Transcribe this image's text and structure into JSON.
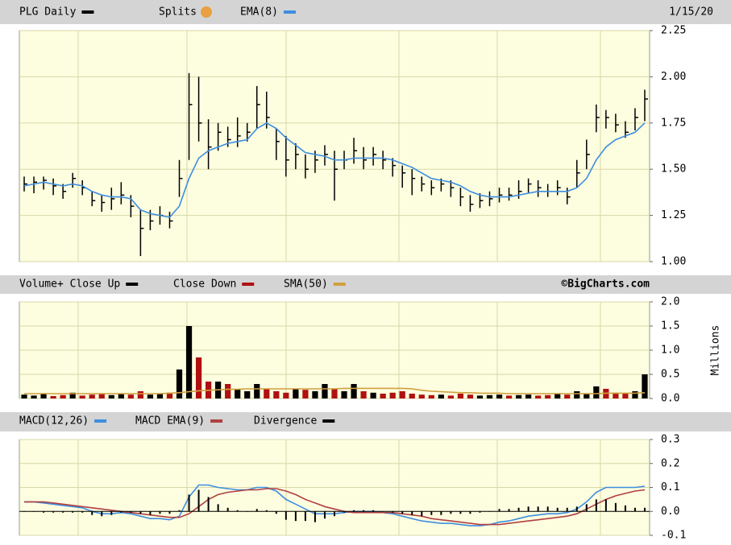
{
  "chart_data": [
    {
      "type": "ohlc",
      "date": "1/15/20",
      "splits": "Splits",
      "ylim": [
        1.0,
        2.25
      ],
      "yticks": [
        {
          "value": 1.0,
          "label": "1.00"
        },
        {
          "value": 1.25,
          "label": "1.25"
        },
        {
          "value": 1.5,
          "label": "1.50"
        },
        {
          "value": 1.75,
          "label": "1.75"
        },
        {
          "value": 2.0,
          "label": "2.00"
        },
        {
          "value": 2.25,
          "label": "2.25"
        }
      ],
      "grid": true,
      "series": [
        {
          "name": "PLG Daily",
          "color": "#000000",
          "high": [
            1.46,
            1.46,
            1.46,
            1.45,
            1.42,
            1.48,
            1.44,
            1.38,
            1.36,
            1.4,
            1.43,
            1.36,
            1.28,
            1.28,
            1.3,
            1.27,
            1.55,
            2.02,
            2.0,
            1.77,
            1.75,
            1.73,
            1.78,
            1.75,
            1.95,
            1.92,
            1.72,
            1.68,
            1.64,
            1.58,
            1.6,
            1.63,
            1.6,
            1.6,
            1.67,
            1.62,
            1.62,
            1.6,
            1.56,
            1.52,
            1.5,
            1.46,
            1.44,
            1.45,
            1.44,
            1.4,
            1.36,
            1.37,
            1.38,
            1.4,
            1.4,
            1.44,
            1.45,
            1.44,
            1.42,
            1.44,
            1.4,
            1.55,
            1.66,
            1.85,
            1.82,
            1.8,
            1.76,
            1.83,
            1.93
          ],
          "low": [
            1.38,
            1.37,
            1.39,
            1.36,
            1.34,
            1.4,
            1.36,
            1.3,
            1.27,
            1.28,
            1.31,
            1.24,
            1.03,
            1.17,
            1.2,
            1.18,
            1.35,
            1.55,
            1.65,
            1.5,
            1.6,
            1.62,
            1.62,
            1.65,
            1.72,
            1.72,
            1.55,
            1.46,
            1.5,
            1.45,
            1.48,
            1.52,
            1.33,
            1.5,
            1.53,
            1.5,
            1.52,
            1.5,
            1.46,
            1.4,
            1.36,
            1.38,
            1.36,
            1.38,
            1.35,
            1.3,
            1.27,
            1.29,
            1.3,
            1.32,
            1.33,
            1.34,
            1.37,
            1.35,
            1.35,
            1.36,
            1.31,
            1.4,
            1.5,
            1.7,
            1.72,
            1.7,
            1.67,
            1.71,
            1.76
          ],
          "close": [
            1.42,
            1.43,
            1.44,
            1.41,
            1.38,
            1.45,
            1.4,
            1.33,
            1.32,
            1.34,
            1.36,
            1.3,
            1.18,
            1.22,
            1.25,
            1.22,
            1.45,
            1.85,
            1.75,
            1.62,
            1.7,
            1.66,
            1.68,
            1.7,
            1.85,
            1.78,
            1.65,
            1.55,
            1.58,
            1.5,
            1.55,
            1.58,
            1.5,
            1.55,
            1.6,
            1.55,
            1.58,
            1.55,
            1.52,
            1.48,
            1.45,
            1.42,
            1.4,
            1.42,
            1.4,
            1.35,
            1.31,
            1.33,
            1.34,
            1.36,
            1.36,
            1.38,
            1.42,
            1.4,
            1.38,
            1.4,
            1.35,
            1.48,
            1.58,
            1.78,
            1.78,
            1.74,
            1.7,
            1.78,
            1.88
          ]
        },
        {
          "name": "EMA(8)",
          "color": "#3d8ee0",
          "type": "line",
          "values": [
            1.41,
            1.42,
            1.43,
            1.42,
            1.41,
            1.42,
            1.41,
            1.38,
            1.36,
            1.35,
            1.35,
            1.34,
            1.28,
            1.26,
            1.25,
            1.24,
            1.3,
            1.45,
            1.56,
            1.6,
            1.62,
            1.64,
            1.65,
            1.66,
            1.72,
            1.75,
            1.72,
            1.67,
            1.63,
            1.59,
            1.58,
            1.57,
            1.55,
            1.55,
            1.56,
            1.56,
            1.56,
            1.56,
            1.55,
            1.53,
            1.51,
            1.48,
            1.45,
            1.44,
            1.43,
            1.41,
            1.38,
            1.36,
            1.35,
            1.35,
            1.35,
            1.36,
            1.37,
            1.38,
            1.38,
            1.38,
            1.38,
            1.4,
            1.45,
            1.55,
            1.62,
            1.66,
            1.68,
            1.7,
            1.75
          ]
        }
      ]
    },
    {
      "type": "bar",
      "credit": "©BigCharts.com",
      "y_label": "Millions",
      "ylim": [
        0,
        2
      ],
      "yticks": [
        {
          "value": 0,
          "label": "0.0"
        },
        0.5,
        {
          "value": 1,
          "label": "1.0"
        },
        1.5,
        {
          "value": 2,
          "label": "2.0"
        }
      ],
      "grid": true,
      "series": [
        {
          "name": "Volume+ Close Up",
          "color": "#000000",
          "values": [
            0.08,
            0.06,
            0.1,
            null,
            null,
            0.12,
            null,
            null,
            null,
            0.07,
            0.09,
            null,
            null,
            0.08,
            0.1,
            null,
            0.6,
            1.5,
            null,
            null,
            0.35,
            null,
            0.2,
            0.15,
            0.3,
            null,
            null,
            null,
            0.2,
            null,
            0.15,
            0.3,
            null,
            0.15,
            0.3,
            null,
            0.12,
            null,
            null,
            null,
            null,
            null,
            null,
            0.08,
            null,
            null,
            null,
            0.06,
            0.07,
            0.08,
            null,
            0.07,
            0.08,
            null,
            null,
            0.1,
            null,
            0.15,
            0.1,
            0.25,
            null,
            null,
            null,
            0.15,
            0.5
          ]
        },
        {
          "name": "Close Down",
          "color": "#b01010",
          "values": [
            null,
            null,
            null,
            0.05,
            0.07,
            null,
            0.06,
            0.08,
            0.1,
            null,
            null,
            0.08,
            0.15,
            null,
            null,
            0.12,
            null,
            null,
            0.85,
            0.35,
            null,
            0.3,
            null,
            null,
            null,
            0.2,
            0.15,
            0.12,
            null,
            0.18,
            null,
            null,
            0.2,
            null,
            null,
            0.15,
            null,
            0.1,
            0.12,
            0.15,
            0.1,
            0.08,
            0.07,
            null,
            0.06,
            0.1,
            0.08,
            null,
            null,
            null,
            0.06,
            null,
            null,
            0.06,
            0.07,
            null,
            0.08,
            null,
            null,
            null,
            0.2,
            0.12,
            0.1,
            null,
            null
          ]
        },
        {
          "name": "SMA(50)",
          "color": "#d0a040",
          "type": "line",
          "values": [
            0.1,
            0.1,
            0.1,
            0.1,
            0.1,
            0.1,
            0.1,
            0.1,
            0.1,
            0.1,
            0.1,
            0.1,
            0.1,
            0.1,
            0.1,
            0.11,
            0.12,
            0.14,
            0.16,
            0.17,
            0.18,
            0.19,
            0.19,
            0.2,
            0.2,
            0.2,
            0.2,
            0.2,
            0.2,
            0.2,
            0.2,
            0.2,
            0.2,
            0.21,
            0.21,
            0.21,
            0.21,
            0.21,
            0.21,
            0.21,
            0.2,
            0.17,
            0.15,
            0.14,
            0.13,
            0.12,
            0.12,
            0.11,
            0.11,
            0.11,
            0.1,
            0.1,
            0.1,
            0.1,
            0.1,
            0.1,
            0.1,
            0.1,
            0.1,
            0.1,
            0.11,
            0.11,
            0.11,
            0.11,
            0.12
          ]
        }
      ]
    },
    {
      "type": "line",
      "ylim": [
        -0.1,
        0.3
      ],
      "yticks": [
        -0.1,
        {
          "value": 0,
          "label": "0.0"
        },
        0.1,
        0.2,
        0.3
      ],
      "grid": true,
      "series": [
        {
          "name": "MACD(12,26)",
          "color": "#3d8ee0",
          "values": [
            0.04,
            0.04,
            0.035,
            0.03,
            0.025,
            0.02,
            0.015,
            0,
            -0.01,
            -0.01,
            -0.005,
            -0.01,
            -0.02,
            -0.03,
            -0.03,
            -0.035,
            -0.02,
            0.06,
            0.11,
            0.11,
            0.1,
            0.095,
            0.09,
            0.09,
            0.1,
            0.1,
            0.085,
            0.05,
            0.03,
            0.01,
            -0.01,
            -0.01,
            -0.01,
            -0.005,
            0,
            0,
            0,
            -0.005,
            -0.01,
            -0.02,
            -0.03,
            -0.04,
            -0.045,
            -0.05,
            -0.05,
            -0.055,
            -0.06,
            -0.06,
            -0.055,
            -0.045,
            -0.04,
            -0.03,
            -0.02,
            -0.015,
            -0.01,
            -0.01,
            -0.005,
            0.01,
            0.04,
            0.08,
            0.1,
            0.1,
            0.1,
            0.1,
            0.105
          ]
        },
        {
          "name": "MACD EMA(9)",
          "color": "#b04040",
          "values": [
            0.04,
            0.04,
            0.04,
            0.035,
            0.03,
            0.025,
            0.02,
            0.015,
            0.01,
            0.005,
            0,
            -0.005,
            -0.01,
            -0.015,
            -0.02,
            -0.025,
            -0.025,
            -0.01,
            0.02,
            0.05,
            0.07,
            0.08,
            0.085,
            0.09,
            0.09,
            0.095,
            0.095,
            0.085,
            0.07,
            0.05,
            0.035,
            0.02,
            0.01,
            0,
            -0.005,
            -0.005,
            -0.005,
            -0.005,
            -0.005,
            -0.01,
            -0.015,
            -0.02,
            -0.03,
            -0.035,
            -0.04,
            -0.045,
            -0.05,
            -0.055,
            -0.055,
            -0.055,
            -0.05,
            -0.045,
            -0.04,
            -0.035,
            -0.03,
            -0.025,
            -0.02,
            -0.01,
            0.01,
            0.03,
            0.05,
            0.065,
            0.075,
            0.085,
            0.09
          ]
        },
        {
          "name": "Divergence",
          "color": "#000000",
          "type": "bar",
          "values": [
            0,
            0,
            -0.005,
            -0.005,
            -0.005,
            -0.005,
            -0.005,
            -0.015,
            -0.02,
            -0.015,
            -0.005,
            -0.005,
            -0.01,
            -0.015,
            -0.01,
            -0.01,
            0.005,
            0.07,
            0.09,
            0.06,
            0.03,
            0.015,
            0.005,
            0,
            0.01,
            0.005,
            -0.01,
            -0.035,
            -0.04,
            -0.04,
            -0.045,
            -0.03,
            -0.02,
            -0.005,
            0.005,
            0.005,
            0.005,
            0,
            -0.005,
            -0.01,
            -0.015,
            -0.02,
            -0.015,
            -0.015,
            -0.01,
            -0.01,
            -0.01,
            -0.005,
            0,
            0.01,
            0.01,
            0.015,
            0.02,
            0.02,
            0.02,
            0.015,
            0.015,
            0.02,
            0.03,
            0.05,
            0.05,
            0.035,
            0.025,
            0.015,
            0.015
          ]
        }
      ]
    }
  ]
}
